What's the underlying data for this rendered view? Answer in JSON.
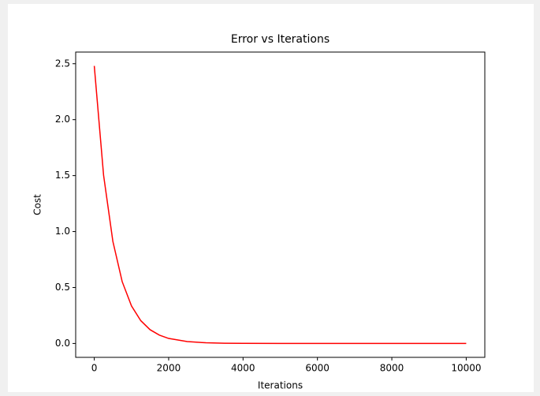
{
  "chart_data": {
    "type": "line",
    "title": "Error vs Iterations",
    "x_label": "Iterations",
    "y_label": "Cost",
    "x": [
      0,
      250,
      500,
      750,
      1000,
      1250,
      1500,
      1750,
      2000,
      2500,
      3000,
      3500,
      4000,
      5000,
      6000,
      7000,
      8000,
      9000,
      10000
    ],
    "series": [
      {
        "name": "Cost",
        "color": "#ff0000",
        "values": [
          2.48,
          1.504,
          0.912,
          0.553,
          0.336,
          0.204,
          0.123,
          0.075,
          0.045,
          0.017,
          0.006,
          0.002,
          0.001,
          0,
          0,
          0,
          0,
          0,
          0
        ]
      }
    ],
    "xlim": [
      -500,
      10500
    ],
    "ylim": [
      -0.124,
      2.604
    ],
    "xticks": [
      0,
      2000,
      4000,
      6000,
      8000,
      10000
    ],
    "yticks": [
      {
        "value": 0,
        "label": "0.0"
      },
      {
        "value": 0.5,
        "label": "0.5"
      },
      {
        "value": 1,
        "label": "1.0"
      },
      {
        "value": 1.5,
        "label": "1.5"
      },
      {
        "value": 2,
        "label": "2.0"
      },
      {
        "value": 2.5,
        "label": "2.5"
      }
    ],
    "grid": false
  }
}
